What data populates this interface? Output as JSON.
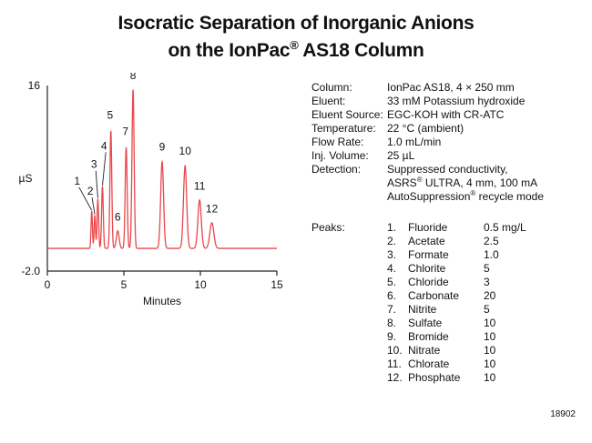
{
  "title": {
    "line1": "Isocratic Separation of Inorganic Anions",
    "line2_pre": "on the IonPac",
    "line2_mark": "®",
    "line2_post": " AS18 Column"
  },
  "conditions": {
    "column_label": "Column:",
    "column_value": "IonPac AS18, 4 × 250 mm",
    "eluent_label": "Eluent:",
    "eluent_value": "33 mM Potassium hydroxide",
    "source_label": "Eluent Source:",
    "source_value": "EGC-KOH with CR-ATC",
    "temp_label": "Temperature:",
    "temp_value": "22 °C (ambient)",
    "flow_label": "Flow Rate:",
    "flow_value": "1.0 mL/min",
    "inj_label": "Inj. Volume:",
    "inj_value": "25 µL",
    "det_label": "Detection:",
    "det_value_1": "Suppressed conductivity,",
    "det_value_2a": "ASRS",
    "det_value_2b": " ULTRA, 4 mm, 100 mA",
    "det_value_3a": "AutoSuppression",
    "det_value_3b": " recycle mode",
    "reg_mark": "®"
  },
  "peaks": {
    "label": "Peaks:",
    "unit": "mg/L",
    "items": [
      {
        "num": "1.",
        "name": "Fluoride",
        "value": "0.5"
      },
      {
        "num": "2.",
        "name": "Acetate",
        "value": "2.5"
      },
      {
        "num": "3.",
        "name": "Formate",
        "value": "1.0"
      },
      {
        "num": "4.",
        "name": "Chlorite",
        "value": "5"
      },
      {
        "num": "5.",
        "name": "Chloride",
        "value": "3"
      },
      {
        "num": "6.",
        "name": "Carbonate",
        "value": "20"
      },
      {
        "num": "7.",
        "name": "Nitrite",
        "value": "5"
      },
      {
        "num": "8.",
        "name": "Sulfate",
        "value": "10"
      },
      {
        "num": "9.",
        "name": "Bromide",
        "value": "10"
      },
      {
        "num": "10.",
        "name": "Nitrate",
        "value": "10"
      },
      {
        "num": "11.",
        "name": "Chlorate",
        "value": "10"
      },
      {
        "num": "12.",
        "name": "Phosphate",
        "value": "10"
      }
    ]
  },
  "figure_id": "18902",
  "chart_data": {
    "type": "line",
    "title": "",
    "xlabel": "Minutes",
    "ylabel": "µS",
    "xlim": [
      0,
      15
    ],
    "ylim": [
      -2.0,
      16
    ],
    "y_tick_labels": [
      "16",
      "-2.0"
    ],
    "x_ticks": [
      0,
      5,
      10,
      15
    ],
    "x_tick_labels": [
      "0",
      "5",
      "10",
      "15"
    ],
    "grid": false,
    "line_color": "#e8484c",
    "axis_color": "#222222",
    "baseline": 0.2,
    "peaks": [
      {
        "label": "1",
        "rt": 2.9,
        "height": 3.6,
        "width": 0.045
      },
      {
        "label": "2",
        "rt": 3.1,
        "height": 3.2,
        "width": 0.045
      },
      {
        "label": "3",
        "rt": 3.3,
        "height": 4.8,
        "width": 0.05
      },
      {
        "label": "4",
        "rt": 3.6,
        "height": 6.0,
        "width": 0.055
      },
      {
        "label": "5",
        "rt": 4.15,
        "height": 11.4,
        "width": 0.06
      },
      {
        "label": "6",
        "rt": 4.6,
        "height": 1.7,
        "width": 0.09
      },
      {
        "label": "7",
        "rt": 5.15,
        "height": 9.8,
        "width": 0.065
      },
      {
        "label": "8",
        "rt": 5.6,
        "height": 15.4,
        "width": 0.07
      },
      {
        "label": "9",
        "rt": 7.5,
        "height": 8.4,
        "width": 0.095
      },
      {
        "label": "10",
        "rt": 9.0,
        "height": 8.0,
        "width": 0.105
      },
      {
        "label": "11",
        "rt": 9.95,
        "height": 4.7,
        "width": 0.11
      },
      {
        "label": "12",
        "rt": 10.75,
        "height": 2.5,
        "width": 0.13
      }
    ]
  }
}
